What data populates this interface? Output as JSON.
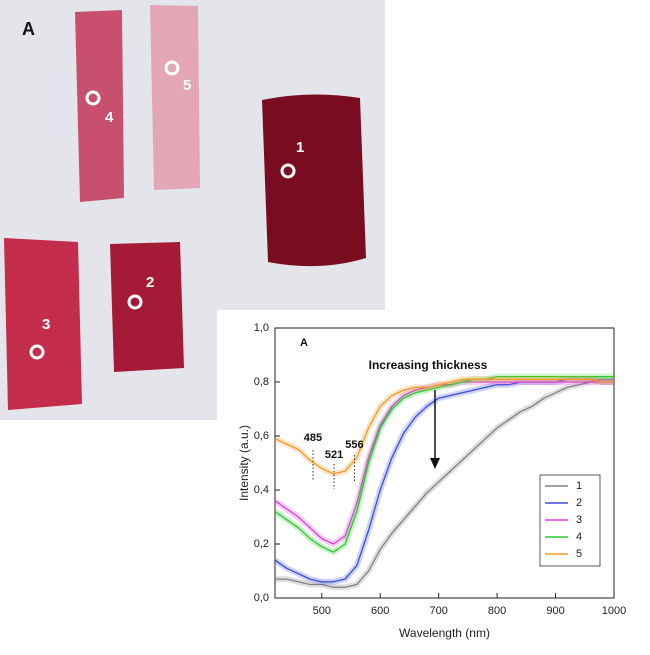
{
  "photo": {
    "label": "A",
    "markers": [
      "1",
      "2",
      "3",
      "4",
      "5"
    ]
  },
  "chart_data": {
    "type": "line",
    "panel_label": "A",
    "x_label": "Wavelength (nm)",
    "y_label": "Intensity (a.u.)",
    "x": [
      420,
      440,
      460,
      480,
      500,
      520,
      540,
      560,
      580,
      600,
      620,
      640,
      660,
      680,
      700,
      720,
      740,
      760,
      780,
      800,
      820,
      840,
      860,
      880,
      900,
      920,
      940,
      960,
      980,
      1000
    ],
    "series": [
      {
        "name": "1",
        "color": "#808080",
        "values": [
          0.07,
          0.07,
          0.06,
          0.05,
          0.05,
          0.04,
          0.04,
          0.05,
          0.1,
          0.18,
          0.24,
          0.29,
          0.34,
          0.39,
          0.43,
          0.47,
          0.51,
          0.55,
          0.59,
          0.63,
          0.66,
          0.69,
          0.71,
          0.74,
          0.76,
          0.78,
          0.79,
          0.8,
          0.81,
          0.81
        ]
      },
      {
        "name": "2",
        "color": "#3a4fd8",
        "values": [
          0.14,
          0.11,
          0.09,
          0.07,
          0.06,
          0.06,
          0.07,
          0.12,
          0.25,
          0.4,
          0.52,
          0.61,
          0.67,
          0.71,
          0.74,
          0.75,
          0.76,
          0.77,
          0.78,
          0.79,
          0.79,
          0.8,
          0.8,
          0.8,
          0.8,
          0.81,
          0.81,
          0.81,
          0.8,
          0.8
        ]
      },
      {
        "name": "3",
        "color": "#e040e0",
        "values": [
          0.36,
          0.33,
          0.3,
          0.26,
          0.22,
          0.2,
          0.23,
          0.35,
          0.52,
          0.64,
          0.71,
          0.75,
          0.77,
          0.78,
          0.79,
          0.79,
          0.8,
          0.8,
          0.8,
          0.8,
          0.8,
          0.8,
          0.8,
          0.8,
          0.8,
          0.8,
          0.8,
          0.8,
          0.8,
          0.8
        ]
      },
      {
        "name": "4",
        "color": "#2ec82e",
        "values": [
          0.32,
          0.29,
          0.26,
          0.22,
          0.19,
          0.17,
          0.2,
          0.32,
          0.5,
          0.63,
          0.7,
          0.74,
          0.76,
          0.77,
          0.78,
          0.79,
          0.8,
          0.81,
          0.81,
          0.82,
          0.82,
          0.82,
          0.82,
          0.82,
          0.82,
          0.82,
          0.82,
          0.82,
          0.82,
          0.82
        ]
      },
      {
        "name": "5",
        "color": "#f59a2a",
        "values": [
          0.59,
          0.57,
          0.55,
          0.51,
          0.48,
          0.46,
          0.47,
          0.52,
          0.63,
          0.71,
          0.75,
          0.77,
          0.78,
          0.78,
          0.79,
          0.8,
          0.81,
          0.81,
          0.81,
          0.81,
          0.81,
          0.81,
          0.81,
          0.81,
          0.81,
          0.81,
          0.81,
          0.81,
          0.8,
          0.8
        ]
      }
    ],
    "xlim": [
      420,
      1000
    ],
    "xticks": [
      500,
      600,
      700,
      800,
      900,
      1000
    ],
    "ylim": [
      0,
      1.0
    ],
    "yticks": [
      {
        "value": 0,
        "label": "0,0"
      },
      {
        "value": 0.2,
        "label": "0,2"
      },
      {
        "value": 0.4,
        "label": "0,4"
      },
      {
        "value": 0.6,
        "label": "0,6"
      },
      {
        "value": 0.8,
        "label": "0,8"
      },
      {
        "value": 1.0,
        "label": "1,0"
      }
    ],
    "arrow_text": "Increasing thickness",
    "peaks": [
      485,
      521,
      556
    ],
    "grid": false,
    "legend": "lower right"
  }
}
